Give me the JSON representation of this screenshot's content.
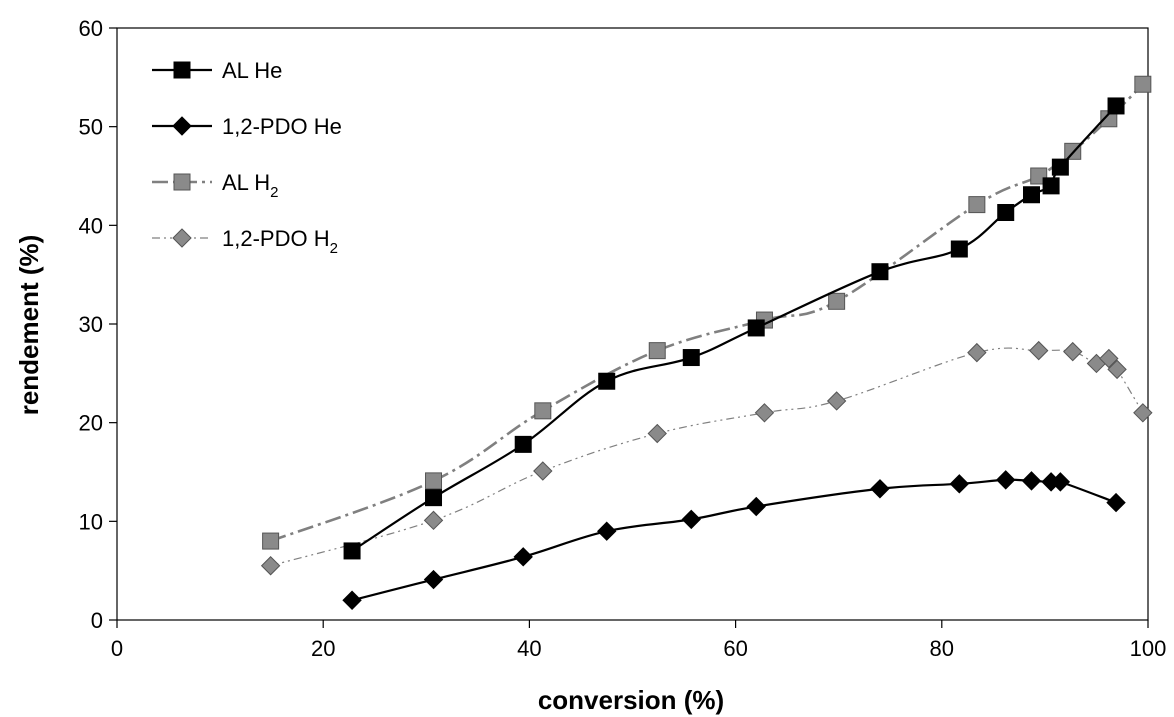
{
  "chart_data": {
    "type": "line",
    "title": "",
    "xlabel": "conversion (%)",
    "ylabel": "rendement (%)",
    "xlim": [
      0,
      100
    ],
    "ylim": [
      0,
      60
    ],
    "x_ticks": [
      0,
      20,
      40,
      60,
      80,
      100
    ],
    "y_ticks": [
      0,
      10,
      20,
      30,
      40,
      50,
      60
    ],
    "grid": false,
    "legend_position": "top-left",
    "series": [
      {
        "name": "AL He",
        "sub": "",
        "marker": "square",
        "color": "#000000",
        "line_style": "solid",
        "points": [
          [
            22.8,
            7.0
          ],
          [
            30.7,
            12.4
          ],
          [
            39.4,
            17.8
          ],
          [
            47.5,
            24.2
          ],
          [
            55.7,
            26.6
          ],
          [
            62.0,
            29.6
          ],
          [
            74.0,
            35.3
          ],
          [
            81.7,
            37.6
          ],
          [
            86.2,
            41.3
          ],
          [
            88.7,
            43.1
          ],
          [
            90.6,
            44.0
          ],
          [
            91.5,
            45.9
          ],
          [
            96.9,
            52.1
          ]
        ]
      },
      {
        "name": "1,2-PDO He",
        "sub": "",
        "marker": "diamond",
        "color": "#000000",
        "line_style": "solid",
        "points": [
          [
            22.8,
            2.0
          ],
          [
            30.7,
            4.1
          ],
          [
            39.4,
            6.4
          ],
          [
            47.5,
            9.0
          ],
          [
            55.7,
            10.2
          ],
          [
            62.0,
            11.5
          ],
          [
            74.0,
            13.3
          ],
          [
            81.7,
            13.8
          ],
          [
            86.2,
            14.2
          ],
          [
            88.7,
            14.1
          ],
          [
            90.6,
            14.0
          ],
          [
            91.5,
            14.0
          ],
          [
            96.9,
            11.9
          ]
        ]
      },
      {
        "name": "AL H",
        "sub": "2",
        "marker": "square",
        "color": "#808080",
        "line_style": "dash-dot",
        "points": [
          [
            14.9,
            8.0
          ],
          [
            30.7,
            14.1
          ],
          [
            41.3,
            21.2
          ],
          [
            52.4,
            27.3
          ],
          [
            62.8,
            30.4
          ],
          [
            69.8,
            32.3
          ],
          [
            83.4,
            42.1
          ],
          [
            89.4,
            45.0
          ],
          [
            92.7,
            47.5
          ],
          [
            96.2,
            50.8
          ],
          [
            99.5,
            54.3
          ]
        ]
      },
      {
        "name": "1,2-PDO H",
        "sub": "2",
        "marker": "diamond",
        "color": "#808080",
        "line_style": "dash-dot-dot",
        "points": [
          [
            14.9,
            5.5
          ],
          [
            30.7,
            10.1
          ],
          [
            41.3,
            15.1
          ],
          [
            52.4,
            18.9
          ],
          [
            62.8,
            21.0
          ],
          [
            69.8,
            22.2
          ],
          [
            83.4,
            27.1
          ],
          [
            89.4,
            27.3
          ],
          [
            92.7,
            27.2
          ],
          [
            95.0,
            26.0
          ],
          [
            96.2,
            26.5
          ],
          [
            97.0,
            25.4
          ],
          [
            99.5,
            21.0
          ]
        ]
      }
    ]
  }
}
